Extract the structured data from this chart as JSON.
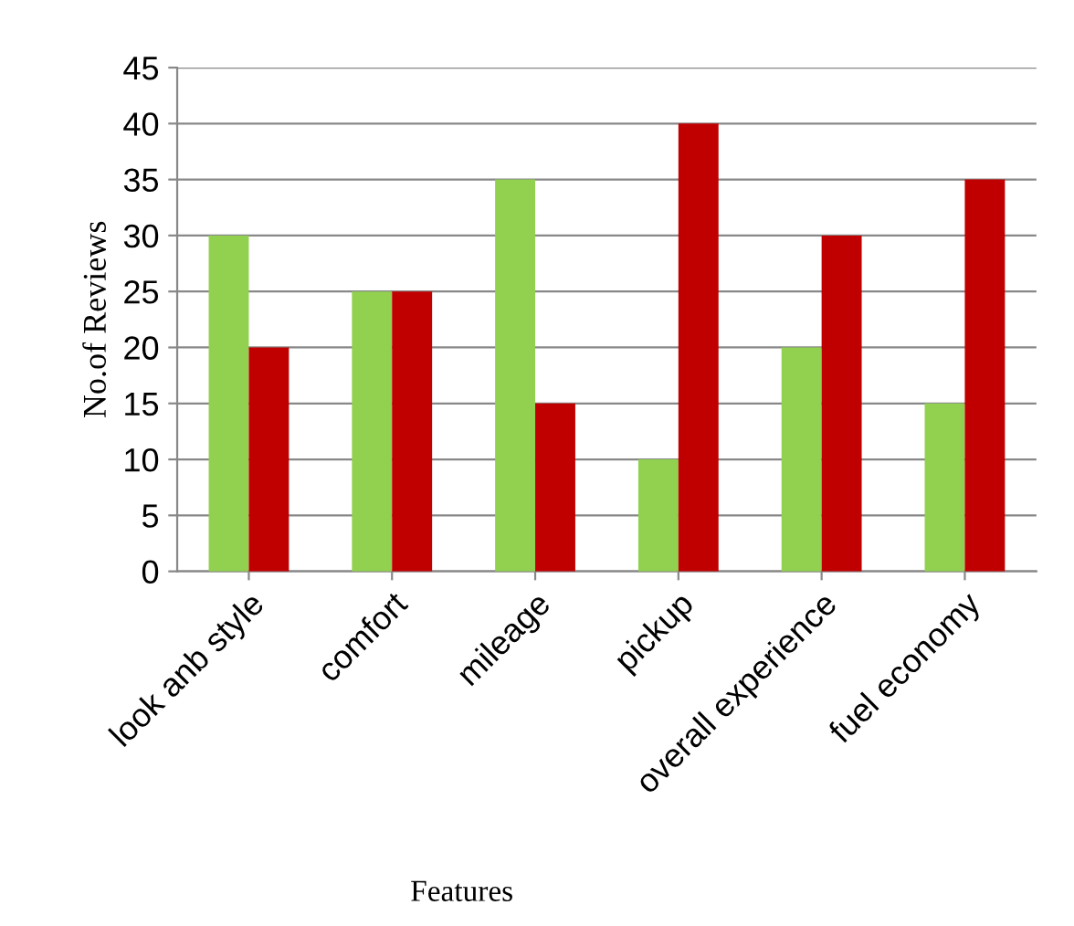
{
  "chart_data": {
    "type": "bar",
    "xlabel": "Features",
    "ylabel": "No.of Reviews",
    "categories": [
      "look anb style",
      "comfort",
      "mileage",
      "pickup",
      "overall experience",
      "fuel economy"
    ],
    "series": [
      {
        "color": "#92d050",
        "values": [
          30,
          25,
          35,
          10,
          20,
          15
        ]
      },
      {
        "color": "#c00000",
        "values": [
          20,
          25,
          15,
          40,
          30,
          35
        ]
      }
    ],
    "ylim": [
      0,
      45
    ],
    "yticks": [
      0,
      5,
      10,
      15,
      20,
      25,
      30,
      35,
      40,
      45
    ],
    "grid": "y"
  }
}
